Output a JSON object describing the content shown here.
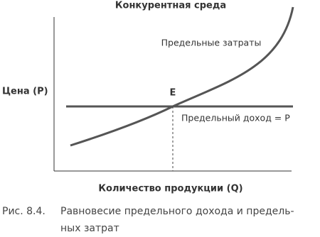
{
  "header": {
    "title": "Конкурентная среда"
  },
  "axes": {
    "y_label": "Цена (P)",
    "x_label": "Количество продукции (Q)"
  },
  "curves": {
    "marginal_cost": "Предельные затраты",
    "marginal_revenue": "Предельный доход = P"
  },
  "point_label": "E",
  "caption": {
    "number": "Рис. 8.4.",
    "line1": "Равновесие предельного дохода и предель-",
    "line2": "ных затрат"
  }
}
